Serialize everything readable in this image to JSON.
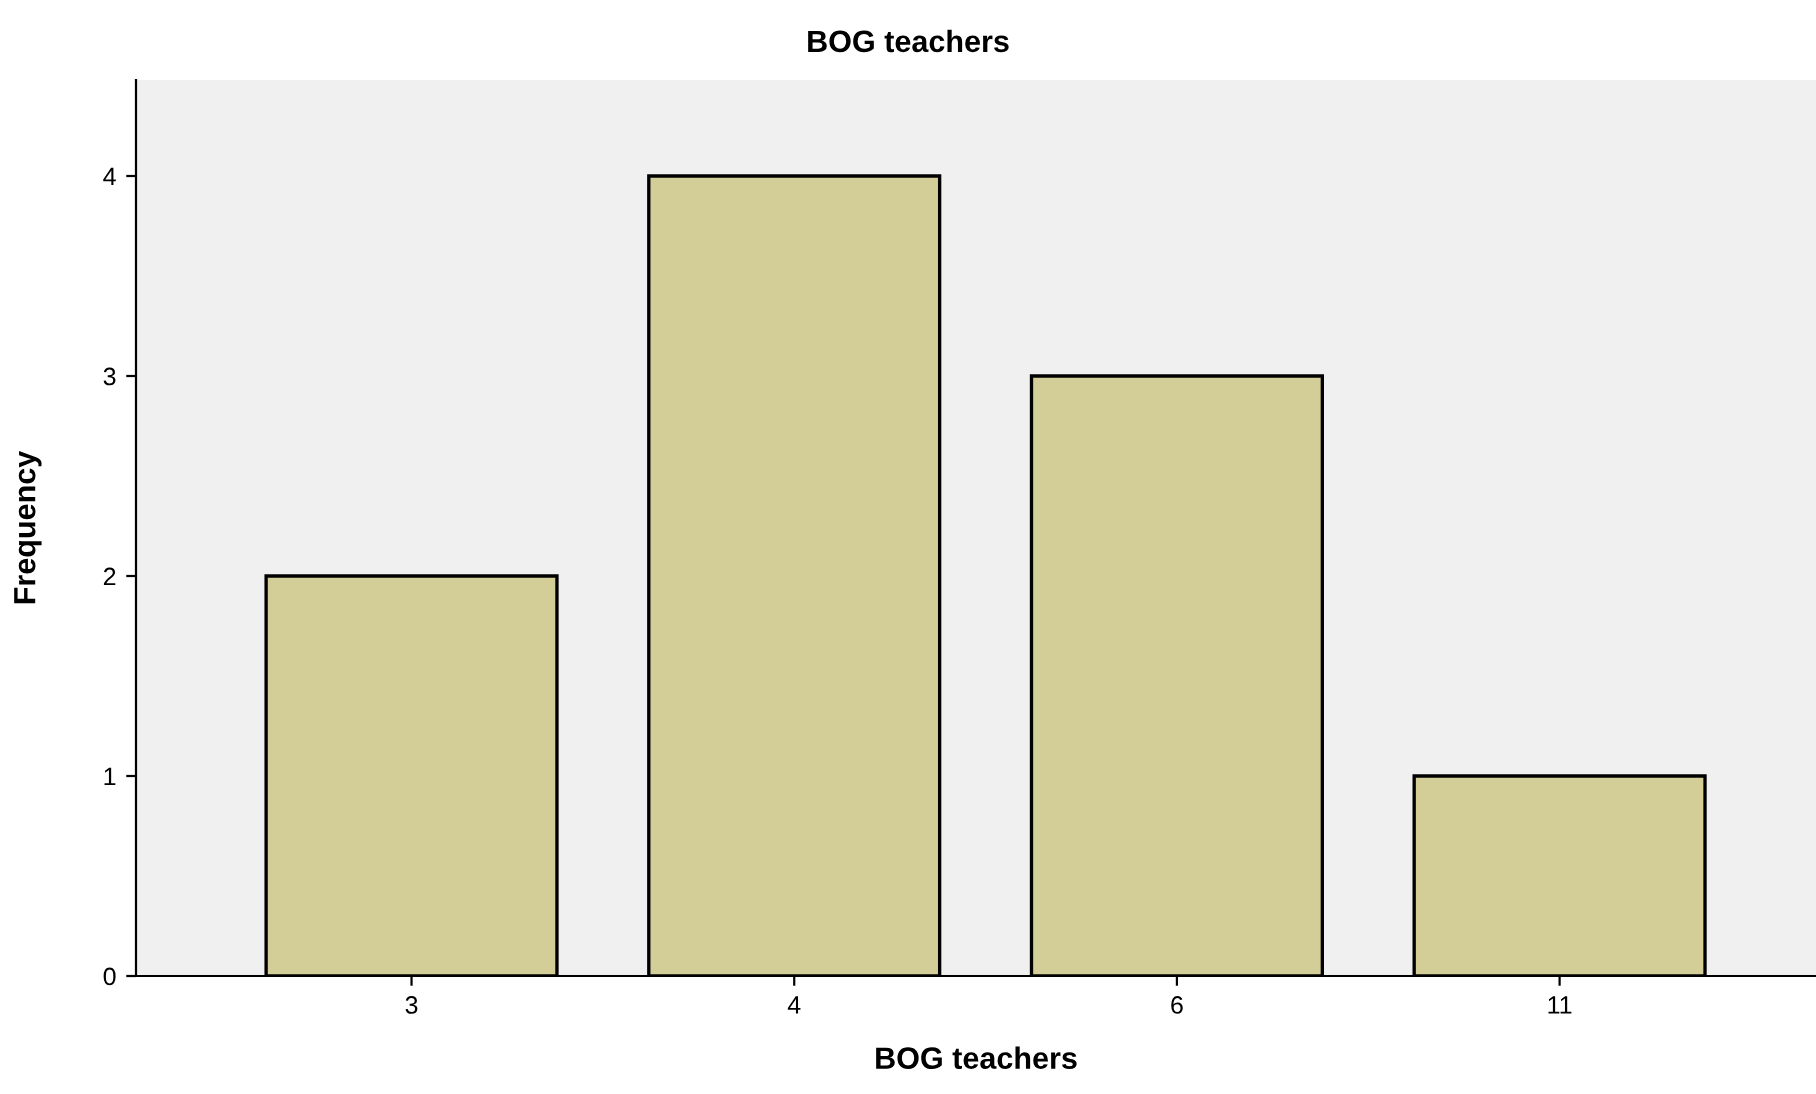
{
  "chart_data": {
    "type": "bar",
    "title": "BOG teachers",
    "xlabel": "BOG teachers",
    "ylabel": "Frequency",
    "categories": [
      "3",
      "4",
      "6",
      "11"
    ],
    "values": [
      2,
      4,
      3,
      1
    ],
    "color": "#d3cd97",
    "ylim": [
      0,
      4.48
    ],
    "yticks": [
      0,
      1,
      2,
      3,
      4
    ],
    "grid": false
  }
}
